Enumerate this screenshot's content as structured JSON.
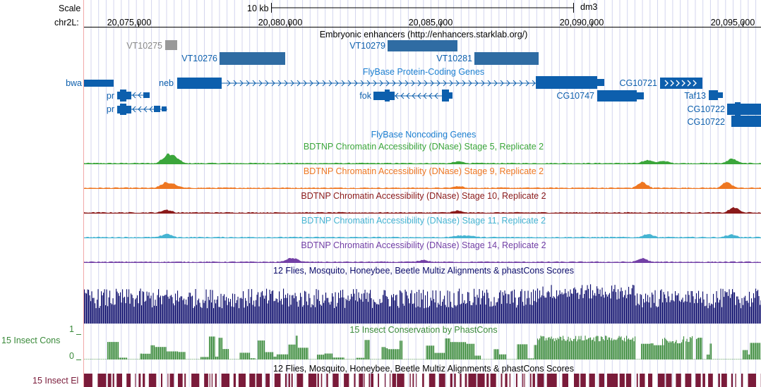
{
  "colors": {
    "blue_gene": "#0d5fad",
    "enhancer": "#2f6ca3",
    "enhancer_gray": "#999999",
    "label_gray": "#888888",
    "noncoding": "#1c7fd0",
    "stage5": "#3ba63b",
    "stage9": "#ee7722",
    "stage10": "#8b1a1a",
    "stage11": "#46b4d2",
    "stage14": "#7340a6",
    "multiz": "#0a0a6a",
    "phastcons": "#3a8a3a",
    "elements": "#7a1b3a",
    "gridline": "#d4d6ee",
    "border_pink": "#f2a8a8"
  },
  "ruler": {
    "scale_label": "Scale",
    "chrom_label": "chr2L:",
    "scale_bar_text": "10 kb",
    "assembly": "dm3",
    "ticks": [
      "20,075,000",
      "20,080,000",
      "20,085,000",
      "20,090,000",
      "20,095,000"
    ]
  },
  "tracks": {
    "enhancers": {
      "title": "Embryonic enhancers (http://enhancers.starklab.org/)",
      "items": [
        "VT10275",
        "VT10276",
        "VT10279",
        "VT10281"
      ]
    },
    "coding": {
      "title": "FlyBase Protein-Coding Genes",
      "genes": [
        "bwa",
        "neb",
        "pr",
        "pr",
        "fok",
        "CG10747",
        "CG10721",
        "Taf13",
        "CG10722",
        "CG10722"
      ]
    },
    "noncoding": {
      "title": "FlyBase Noncoding Genes"
    },
    "dnase": [
      {
        "title": "BDTNP Chromatin Accessibility (DNase) Stage 5, Replicate 2"
      },
      {
        "title": "BDTNP Chromatin Accessibility (DNase) Stage 9, Replicate 2"
      },
      {
        "title": "BDTNP Chromatin Accessibility (DNase) Stage 10, Replicate 2"
      },
      {
        "title": "BDTNP Chromatin Accessibility (DNase) Stage 11, Replicate 2"
      },
      {
        "title": "BDTNP Chromatin Accessibility (DNase) Stage 14, Replicate 2"
      }
    ],
    "multiz": {
      "title": "12 Flies, Mosquito, Honeybee, Beetle Multiz Alignments & phastCons Scores"
    },
    "phastcons": {
      "title": "15 Insect Conservation by PhastCons",
      "side_label": "15 Insect Cons",
      "ymax": "1",
      "ymin": "0"
    },
    "elements": {
      "title": "12 Flies, Mosquito, Honeybee, Beetle Multiz Alignments & phastCons Scores",
      "side_label": "15 Insect El"
    }
  }
}
